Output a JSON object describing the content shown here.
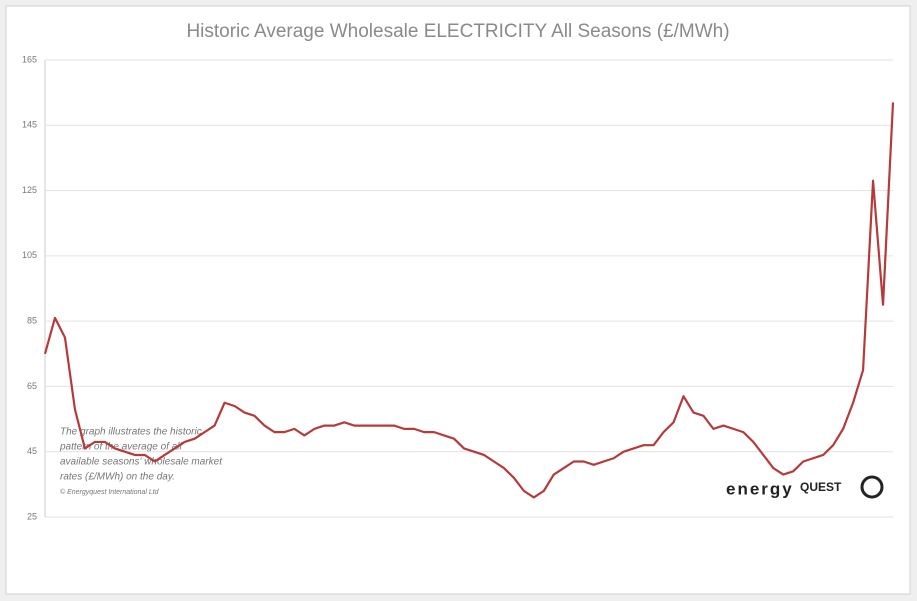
{
  "chart_data": {
    "type": "line",
    "title": "Historic Average Wholesale ELECTRICITY All Seasons (£/MWh)",
    "annotation": [
      "The graph illustrates the historic",
      "pattern of the average of all",
      "available seasons' wholesale market",
      "rates (£/MWh) on the day.",
      "© Energyquest International Ltd"
    ],
    "logo": {
      "word": "energy",
      "accent": "QUEST"
    },
    "color": "#b53a3a",
    "values": [
      75,
      86,
      80,
      58,
      46,
      48,
      48,
      46,
      45,
      44,
      44,
      42,
      44,
      46,
      48,
      49,
      51,
      53,
      60,
      59,
      57,
      56,
      53,
      51,
      51,
      52,
      50,
      52,
      53,
      53,
      54,
      53,
      53,
      53,
      53,
      53,
      52,
      52,
      51,
      51,
      50,
      49,
      46,
      45,
      44,
      42,
      40,
      37,
      33,
      31,
      33,
      38,
      40,
      42,
      42,
      41,
      42,
      43,
      45,
      46,
      47,
      47,
      51,
      54,
      62,
      57,
      56,
      52,
      53,
      52,
      51,
      48,
      44,
      40,
      38,
      39,
      42,
      43,
      44,
      47,
      52,
      60,
      70,
      128,
      90,
      152
    ],
    "ylim": [
      25,
      165
    ],
    "yticks": [
      25,
      45,
      65,
      85,
      105,
      125,
      145,
      165
    ],
    "grid": true
  }
}
